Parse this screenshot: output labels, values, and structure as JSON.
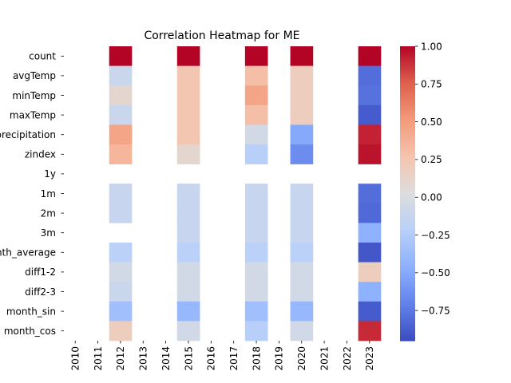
{
  "chart_data": {
    "type": "heatmap",
    "title": "Correlation Heatmap for ME",
    "rows": [
      "count",
      "avgTemp",
      "minTemp",
      "maxTemp",
      "precipitation",
      "zindex",
      "1y",
      "1m",
      "2m",
      "3m",
      "month_average",
      "diff1-2",
      "diff2-3",
      "month_sin",
      "month_cos"
    ],
    "columns": [
      "2010",
      "2011",
      "2012",
      "2013",
      "2014",
      "2015",
      "2016",
      "2017",
      "2018",
      "2019",
      "2020",
      "2021",
      "2022",
      "2023"
    ],
    "values": [
      [
        null,
        null,
        1.0,
        null,
        null,
        1.0,
        null,
        null,
        1.0,
        null,
        1.0,
        null,
        null,
        1.0
      ],
      [
        null,
        null,
        -0.1,
        null,
        null,
        0.25,
        null,
        null,
        0.3,
        null,
        0.18,
        null,
        null,
        -0.8
      ],
      [
        null,
        null,
        0.1,
        null,
        null,
        0.25,
        null,
        null,
        0.45,
        null,
        0.18,
        null,
        null,
        -0.78
      ],
      [
        null,
        null,
        -0.1,
        null,
        null,
        0.25,
        null,
        null,
        0.3,
        null,
        0.18,
        null,
        null,
        -0.88
      ],
      [
        null,
        null,
        0.45,
        null,
        null,
        0.25,
        null,
        null,
        -0.05,
        null,
        -0.5,
        null,
        null,
        0.92
      ],
      [
        null,
        null,
        0.35,
        null,
        null,
        0.1,
        null,
        null,
        -0.22,
        null,
        -0.65,
        null,
        null,
        0.96
      ],
      [
        null,
        null,
        null,
        null,
        null,
        null,
        null,
        null,
        null,
        null,
        null,
        null,
        null,
        null
      ],
      [
        null,
        null,
        -0.12,
        null,
        null,
        -0.12,
        null,
        null,
        -0.12,
        null,
        -0.12,
        null,
        null,
        -0.8
      ],
      [
        null,
        null,
        -0.12,
        null,
        null,
        -0.12,
        null,
        null,
        -0.12,
        null,
        -0.12,
        null,
        null,
        -0.82
      ],
      [
        null,
        null,
        null,
        null,
        null,
        -0.12,
        null,
        null,
        -0.12,
        null,
        -0.12,
        null,
        null,
        -0.45
      ],
      [
        null,
        null,
        -0.2,
        null,
        null,
        -0.2,
        null,
        null,
        -0.2,
        null,
        -0.2,
        null,
        null,
        -0.9
      ],
      [
        null,
        null,
        -0.05,
        null,
        null,
        -0.05,
        null,
        null,
        -0.05,
        null,
        -0.05,
        null,
        null,
        0.18
      ],
      [
        null,
        null,
        -0.1,
        null,
        null,
        -0.05,
        null,
        null,
        -0.05,
        null,
        -0.05,
        null,
        null,
        -0.45
      ],
      [
        null,
        null,
        -0.35,
        null,
        null,
        -0.4,
        null,
        null,
        -0.35,
        null,
        -0.4,
        null,
        null,
        -0.88
      ],
      [
        null,
        null,
        0.18,
        null,
        null,
        -0.05,
        null,
        null,
        -0.22,
        null,
        -0.05,
        null,
        null,
        0.9
      ]
    ],
    "vmin": -0.95,
    "vmax": 1.0,
    "colormap": "coolwarm",
    "colorbar": {
      "ticks": [
        1.0,
        0.75,
        0.5,
        0.25,
        0.0,
        -0.25,
        -0.5,
        -0.75
      ],
      "tick_labels": [
        "1.00",
        "0.75",
        "0.50",
        "0.25",
        "0.00",
        "−0.25",
        "−0.50",
        "−0.75"
      ]
    },
    "grid": false
  }
}
